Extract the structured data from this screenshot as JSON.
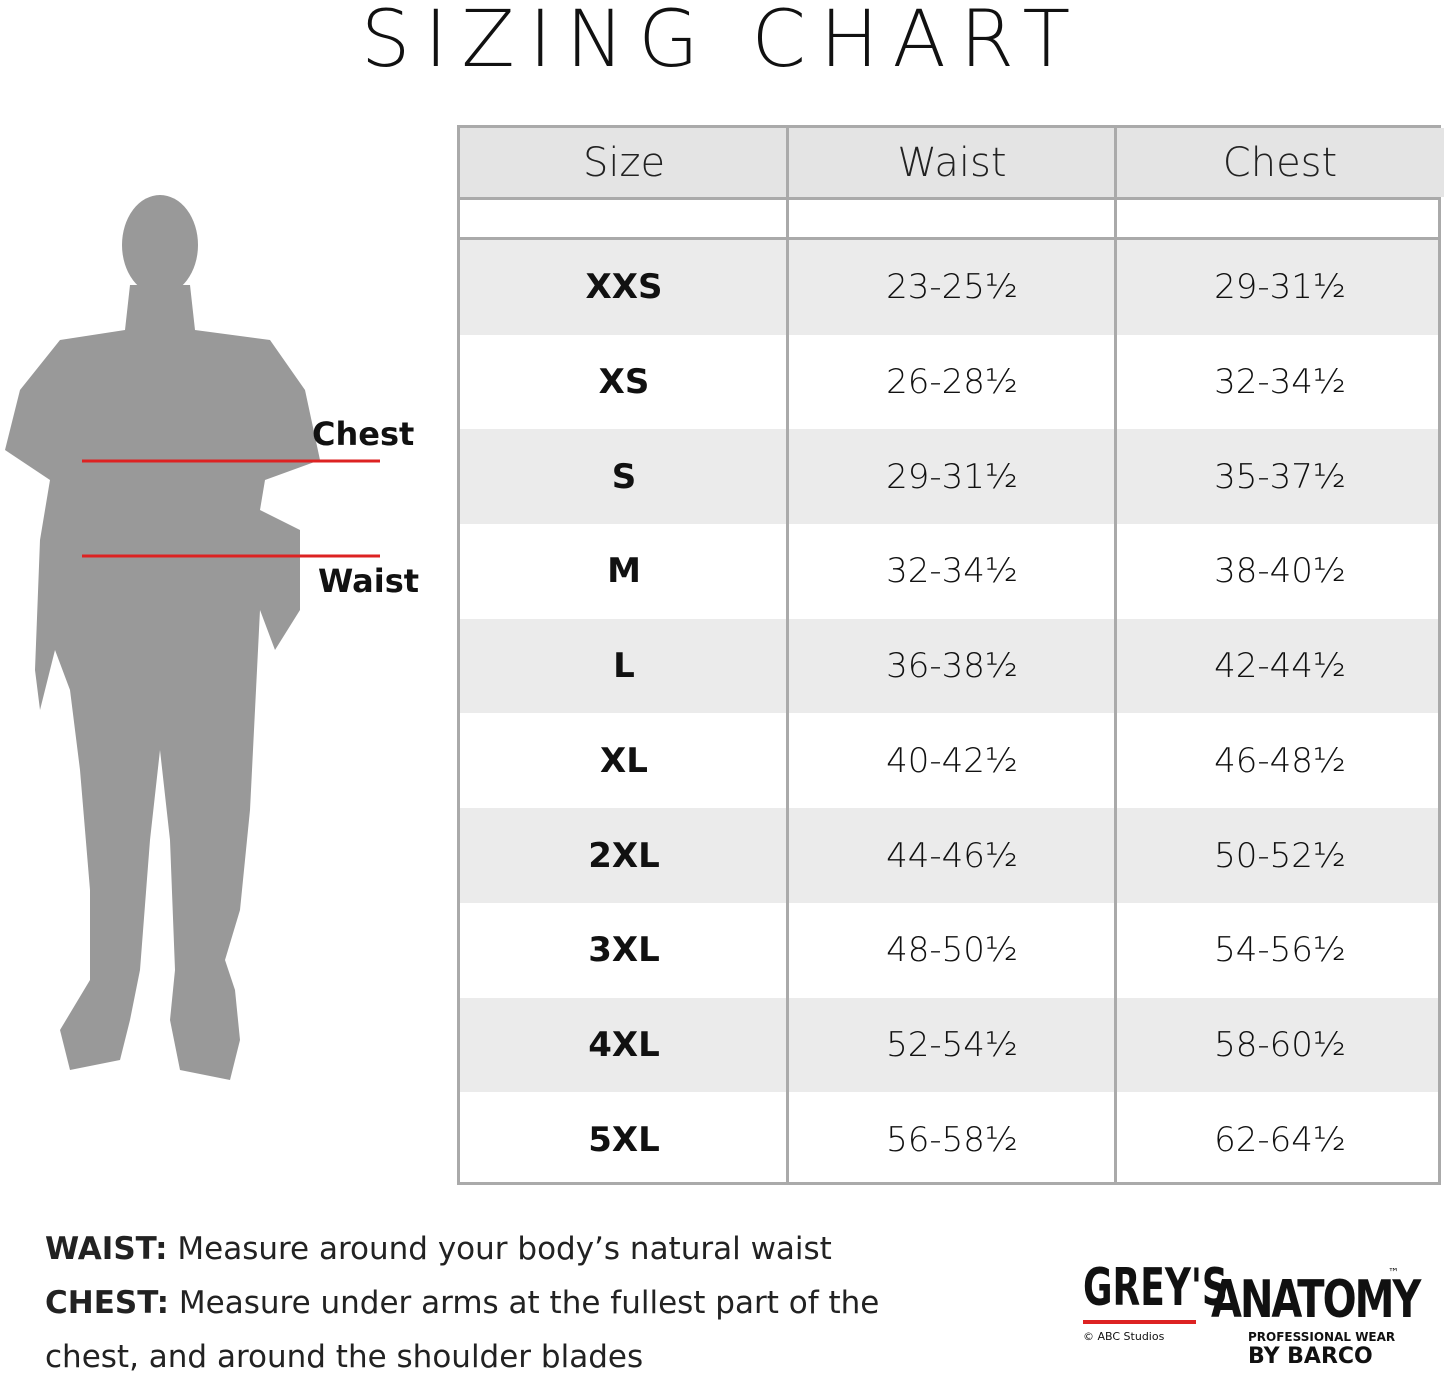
{
  "header": {
    "title": "SIZING CHART"
  },
  "figure": {
    "labels": [
      "Chest",
      "Waist"
    ]
  },
  "table": {
    "columns": [
      "Size",
      "Waist",
      "Chest"
    ],
    "rows": [
      [
        "XXS",
        "23-25½",
        "29-31½"
      ],
      [
        "XS",
        "26-28½",
        "32-34½"
      ],
      [
        "S",
        "29-31½",
        "35-37½"
      ],
      [
        "M",
        "32-34½",
        "38-40½"
      ],
      [
        "L",
        "36-38½",
        "42-44½"
      ],
      [
        "XL",
        "40-42½",
        "46-48½"
      ],
      [
        "2XL",
        "44-46½",
        "50-52½"
      ],
      [
        "3XL",
        "48-50½",
        "54-56½"
      ],
      [
        "4XL",
        "52-54½",
        "58-60½"
      ],
      [
        "5XL",
        "56-58½",
        "62-64½"
      ]
    ]
  },
  "notes": [
    {
      "label": "WAIST:",
      "text": "Measure around your body’s natural waist"
    },
    {
      "label": "CHEST:",
      "text": "Measure under arms at the fullest part of the chest, and around the shoulder blades"
    }
  ],
  "logo": {
    "brand_1": "GREY'S",
    "brand_2": "ANATOMY",
    "trademark": "™",
    "copyright": "© ABC Studios",
    "tagline": "PROFESSIONAL WEAR",
    "maker": "BY BARCO"
  }
}
